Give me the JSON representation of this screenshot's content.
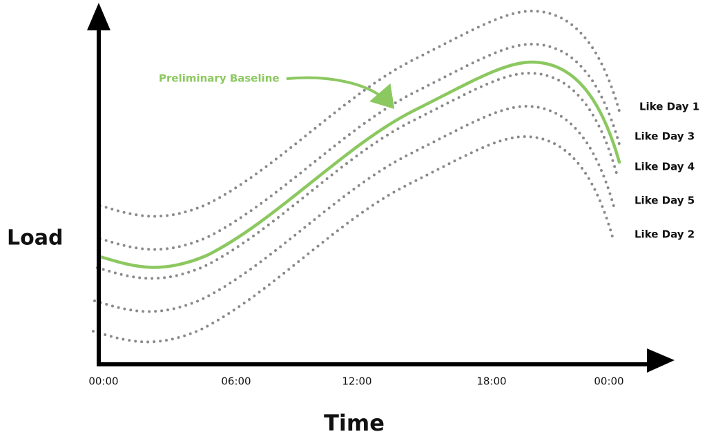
{
  "axes": {
    "y_label": "Load",
    "x_label": "Time",
    "x_ticks": [
      "00:00",
      "06:00",
      "12:00",
      "18:00",
      "00:00"
    ]
  },
  "annotation": "Preliminary Baseline",
  "curve_labels": [
    "Like Day 1",
    "Like Day 3",
    "Like Day 4",
    "Like Day 5",
    "Like Day 2"
  ]
}
